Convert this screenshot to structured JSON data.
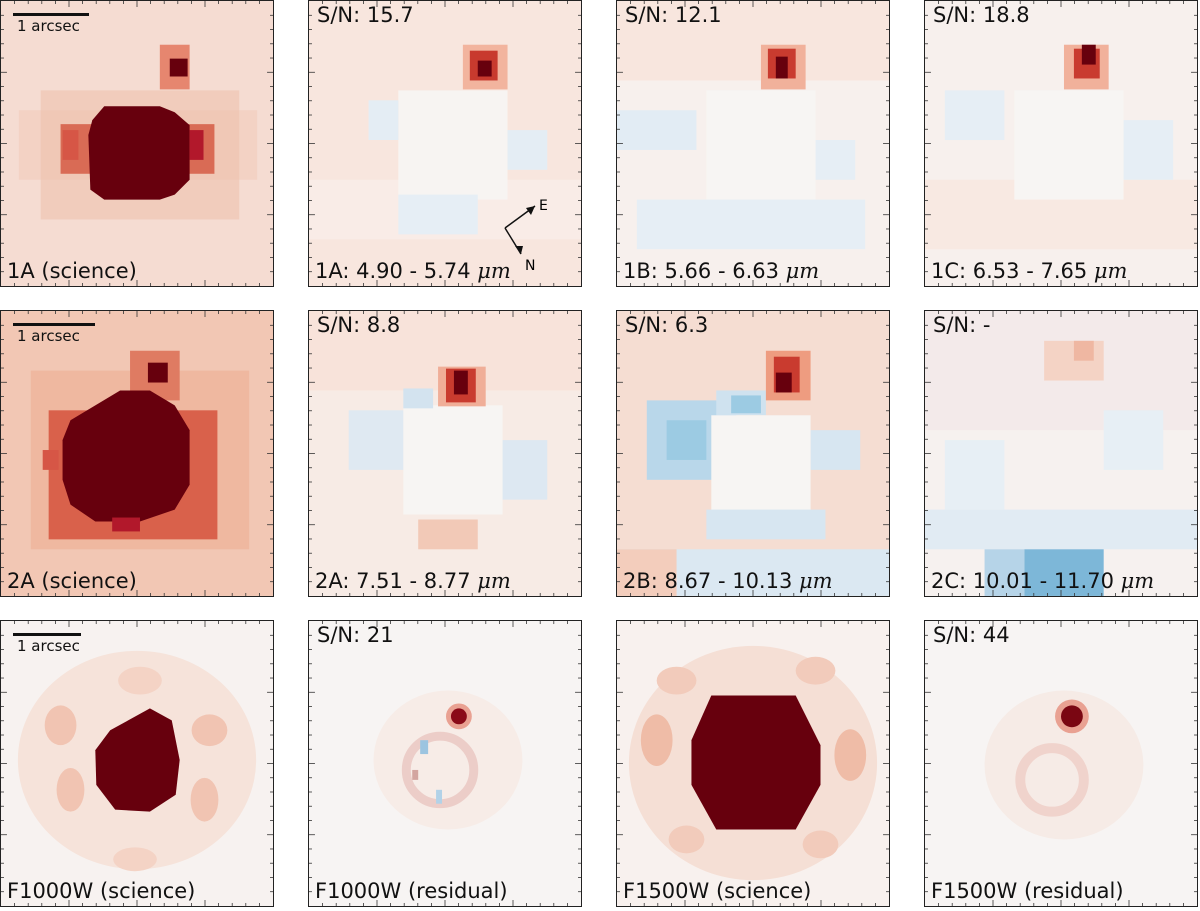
{
  "figure": {
    "scale_bar_label": "1 arcsec",
    "compass": {
      "east": "E",
      "north": "N"
    },
    "unit": "μm",
    "rows": [
      {
        "panels": [
          {
            "id": "1A-science",
            "top": "",
            "bottom": "1A (science)",
            "kind": "science-box",
            "scalebar": true
          },
          {
            "id": "1A-res",
            "top": "S/N: 15.7",
            "bottom_prefix": "1A: 4.90 - 5.74 ",
            "kind": "residual",
            "compass": true
          },
          {
            "id": "1B-res",
            "top": "S/N: 12.1",
            "bottom_prefix": "1B: 5.66 - 6.63 ",
            "kind": "residual"
          },
          {
            "id": "1C-res",
            "top": "S/N: 18.8",
            "bottom_prefix": "1C: 6.53 - 7.65 ",
            "kind": "residual"
          }
        ]
      },
      {
        "panels": [
          {
            "id": "2A-science",
            "top": "",
            "bottom": "2A (science)",
            "kind": "science-box",
            "scalebar": true
          },
          {
            "id": "2A-res",
            "top": "S/N: 8.8",
            "bottom_prefix": "2A: 7.51 - 8.77 ",
            "kind": "residual"
          },
          {
            "id": "2B-res",
            "top": "S/N: 6.3",
            "bottom_prefix": "2B: 8.67 - 10.13 ",
            "kind": "residual"
          },
          {
            "id": "2C-res",
            "top": "S/N: -",
            "bottom_prefix": "2C: 10.01 - 11.70 ",
            "kind": "residual-faint"
          }
        ]
      },
      {
        "panels": [
          {
            "id": "F1000W-science",
            "top": "",
            "bottom": "F1000W (science)",
            "kind": "science-hex",
            "scalebar": true
          },
          {
            "id": "F1000W-res",
            "top": "S/N: 21",
            "bottom": "F1000W (residual)",
            "kind": "residual-smooth"
          },
          {
            "id": "F1500W-science",
            "top": "",
            "bottom": "F1500W (science)",
            "kind": "science-hex-big"
          },
          {
            "id": "F1500W-res",
            "top": "S/N: 44",
            "bottom": "F1500W (residual)",
            "kind": "residual-smooth-big"
          }
        ]
      }
    ],
    "colors": {
      "dark_red": "#67000d",
      "red": "#b2182b",
      "salmon": "#e8a38a",
      "light_salmon": "#f4d3c5",
      "pale": "#f6efec",
      "light_blue": "#d9e7f1",
      "blue": "#92c5de"
    }
  }
}
